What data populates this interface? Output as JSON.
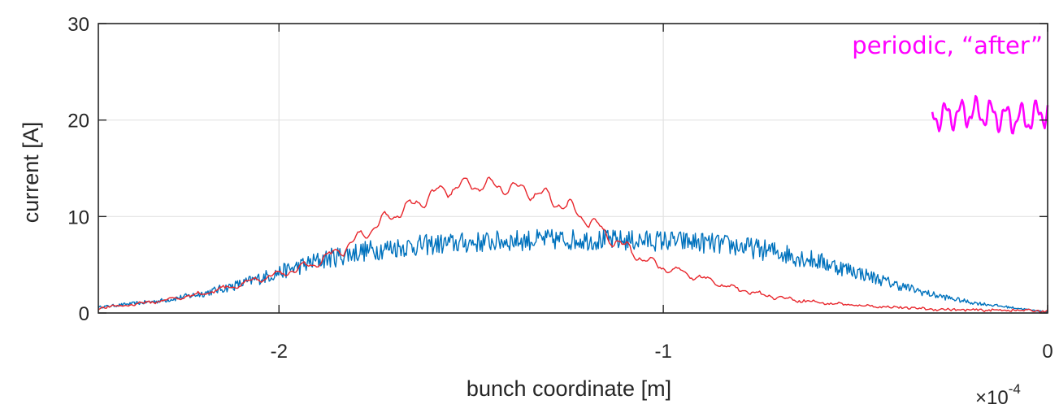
{
  "chart_data": {
    "type": "line",
    "title": "",
    "xlabel": "bunch coordinate [m]",
    "ylabel": "current [A]",
    "x_multiplier": "×10",
    "x_multiplier_exp": "-4",
    "xlim": [
      -2.47,
      0
    ],
    "ylim": [
      0,
      30
    ],
    "x_ticks": [
      -2,
      -1,
      0
    ],
    "x_tick_labels": [
      "-2",
      "-1",
      "0"
    ],
    "y_ticks": [
      0,
      10,
      20,
      30
    ],
    "y_tick_labels": [
      "0",
      "10",
      "20",
      "30"
    ],
    "grid": true,
    "annotation": {
      "text": "periodic, “after”",
      "color": "#ff00ff"
    },
    "series": [
      {
        "color": "#0072bd",
        "x": [
          -2.47,
          -2.3,
          -2.2,
          -2.1,
          -2.0,
          -1.9,
          -1.8,
          -1.7,
          -1.6,
          -1.5,
          -1.4,
          -1.3,
          -1.2,
          -1.1,
          -1.0,
          -0.9,
          -0.8,
          -0.7,
          -0.6,
          -0.5,
          -0.4,
          -0.3,
          -0.2,
          -0.1,
          0.0
        ],
        "values": [
          0.6,
          1.3,
          2.0,
          3.0,
          4.2,
          5.4,
          6.3,
          6.8,
          7.1,
          7.3,
          7.5,
          7.6,
          7.6,
          7.5,
          7.5,
          7.3,
          6.9,
          6.3,
          5.4,
          4.3,
          3.0,
          1.9,
          1.1,
          0.6,
          0.1
        ],
        "noise_amplitude": 1.1
      },
      {
        "color": "#e8262c",
        "x": [
          -2.47,
          -2.4,
          -2.3,
          -2.2,
          -2.1,
          -2.0,
          -1.9,
          -1.85,
          -1.8,
          -1.75,
          -1.7,
          -1.65,
          -1.6,
          -1.55,
          -1.5,
          -1.45,
          -1.4,
          -1.35,
          -1.3,
          -1.25,
          -1.2,
          -1.15,
          -1.1,
          -1.05,
          -1.0,
          -0.95,
          -0.9,
          -0.85,
          -0.8,
          -0.75,
          -0.7,
          -0.6,
          -0.5,
          -0.4,
          -0.3,
          -0.2,
          -0.1,
          0.0
        ],
        "values": [
          0.5,
          0.8,
          1.3,
          2.0,
          3.0,
          4.0,
          5.2,
          6.3,
          7.5,
          9.0,
          10.3,
          11.2,
          12.3,
          13.0,
          13.3,
          13.2,
          13.0,
          12.6,
          12.0,
          11.0,
          9.8,
          8.2,
          6.8,
          5.6,
          4.7,
          4.2,
          3.6,
          3.0,
          2.4,
          2.0,
          1.6,
          1.1,
          0.8,
          0.6,
          0.4,
          0.3,
          0.3,
          0.2
        ],
        "ripple_amplitude": 0.9
      },
      {
        "color": "#ff00ff",
        "x": [
          -0.3,
          -0.25,
          -0.2,
          -0.15,
          -0.1,
          -0.05,
          0.0
        ],
        "values": [
          20.3,
          20.5,
          20.8,
          20.6,
          20.2,
          20.1,
          21.0
        ],
        "ripple_amplitude": 1.7
      }
    ]
  }
}
